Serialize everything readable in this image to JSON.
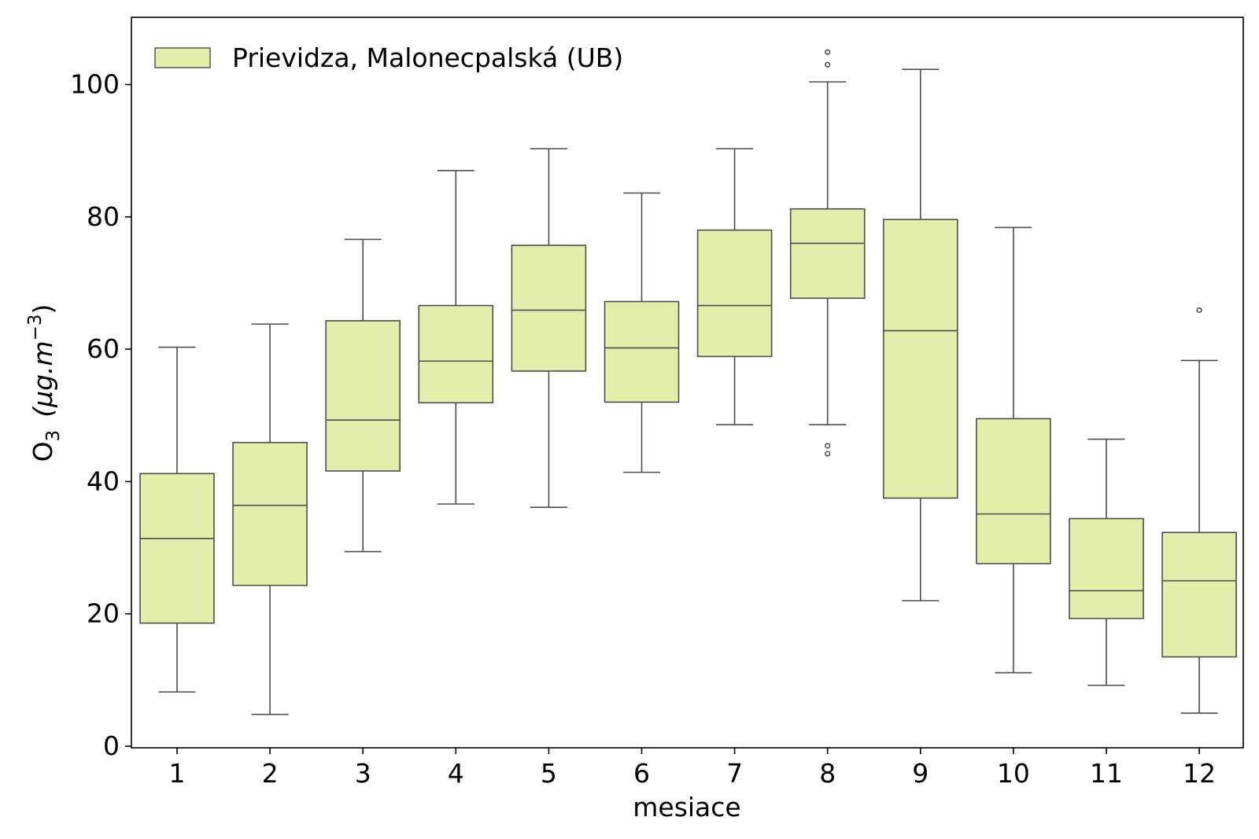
{
  "chart_data": {
    "type": "boxplot",
    "title": "",
    "xlabel": "mesiace",
    "ylabel": {
      "main": "O",
      "sub": "3",
      "unit_prefix": "(μg.m",
      "unit_sup": "−3",
      "unit_suffix": ")"
    },
    "ylim": [
      0,
      110
    ],
    "yticks": [
      0,
      20,
      40,
      60,
      80,
      100
    ],
    "grid": false,
    "legend": {
      "label": "Prievidza, Malonecpalská (UB)",
      "position": "top-left"
    },
    "colors": {
      "box_fill": "#e3eeab",
      "line": "#4d4d4d",
      "axis": "#000000"
    },
    "series": [
      {
        "name": "Prievidza, Malonecpalská (UB)",
        "boxes": [
          {
            "label": "1",
            "whislo": 8.2,
            "q1": 18.6,
            "med": 31.4,
            "q3": 41.2,
            "whishi": 60.3,
            "fliers": []
          },
          {
            "label": "2",
            "whislo": 4.8,
            "q1": 24.3,
            "med": 36.4,
            "q3": 45.9,
            "whishi": 63.8,
            "fliers": []
          },
          {
            "label": "3",
            "whislo": 29.4,
            "q1": 41.6,
            "med": 49.3,
            "q3": 64.3,
            "whishi": 76.6,
            "fliers": []
          },
          {
            "label": "4",
            "whislo": 36.6,
            "q1": 51.9,
            "med": 58.2,
            "q3": 66.6,
            "whishi": 87.0,
            "fliers": []
          },
          {
            "label": "5",
            "whislo": 36.1,
            "q1": 56.7,
            "med": 65.9,
            "q3": 75.7,
            "whishi": 90.3,
            "fliers": []
          },
          {
            "label": "6",
            "whislo": 41.4,
            "q1": 52.0,
            "med": 60.2,
            "q3": 67.2,
            "whishi": 83.6,
            "fliers": []
          },
          {
            "label": "7",
            "whislo": 48.6,
            "q1": 58.9,
            "med": 66.6,
            "q3": 78.0,
            "whishi": 90.3,
            "fliers": []
          },
          {
            "label": "8",
            "whislo": 48.6,
            "q1": 67.7,
            "med": 76.0,
            "q3": 81.2,
            "whishi": 100.4,
            "fliers": [
              44.2,
              45.4,
              103.0,
              104.9
            ]
          },
          {
            "label": "9",
            "whislo": 22.0,
            "q1": 37.5,
            "med": 62.8,
            "q3": 79.6,
            "whishi": 102.3,
            "fliers": []
          },
          {
            "label": "10",
            "whislo": 11.1,
            "q1": 27.6,
            "med": 35.1,
            "q3": 49.5,
            "whishi": 78.4,
            "fliers": []
          },
          {
            "label": "11",
            "whislo": 9.2,
            "q1": 19.3,
            "med": 23.5,
            "q3": 34.4,
            "whishi": 46.4,
            "fliers": []
          },
          {
            "label": "12",
            "whislo": 5.0,
            "q1": 13.5,
            "med": 25.0,
            "q3": 32.3,
            "whishi": 58.3,
            "fliers": [
              65.9
            ]
          }
        ]
      }
    ]
  }
}
